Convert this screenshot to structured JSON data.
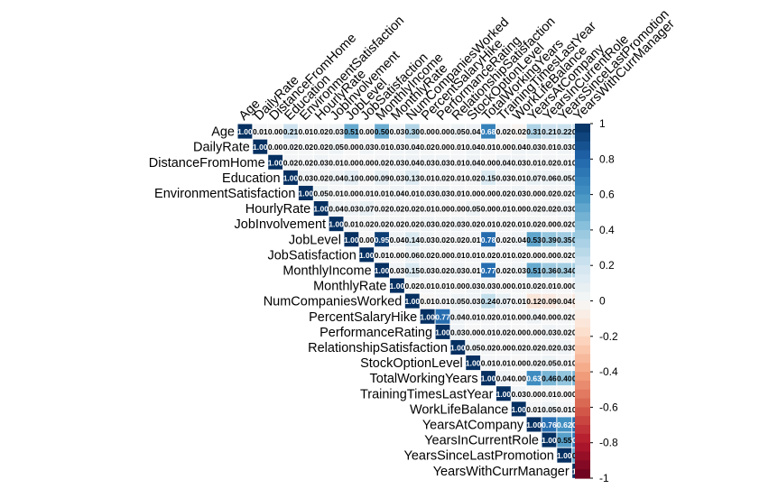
{
  "chart_data": {
    "type": "heatmap",
    "variables": [
      "Age",
      "DailyRate",
      "DistanceFromHome",
      "Education",
      "EnvironmentSatisfaction",
      "HourlyRate",
      "JobInvolvement",
      "JobLevel",
      "JobSatisfaction",
      "MonthlyIncome",
      "MonthlyRate",
      "NumCompaniesWorked",
      "PercentSalaryHike",
      "PerformanceRating",
      "RelationshipSatisfaction",
      "StockOptionLevel",
      "TotalWorkingYears",
      "TrainingTimesLastYear",
      "WorkLifeBalance",
      "YearsAtCompany",
      "YearsInCurrentRole",
      "YearsSinceLastPromotion",
      "YearsWithCurrManager"
    ],
    "upper_triangle_values": [
      [
        "1.00",
        "0.01",
        "0.00",
        "0.21",
        "0.01",
        "0.02",
        "0.03",
        "0.51",
        "0.00",
        "0.50",
        "0.03",
        "0.30",
        "0.00",
        "0.00",
        "0.05",
        "0.04",
        "0.68",
        "0.02",
        "0.02",
        "0.31",
        "0.21",
        "0.22",
        "0.20"
      ],
      [
        "1.00",
        "0.00",
        "0.02",
        "0.02",
        "0.02",
        "0.05",
        "0.00",
        "0.03",
        "0.01",
        "0.03",
        "0.04",
        "0.02",
        "0.00",
        "0.01",
        "0.04",
        "0.01",
        "0.00",
        "0.04",
        "0.03",
        "0.01",
        "0.03",
        "0.03"
      ],
      [
        "1.00",
        "0.02",
        "0.02",
        "0.03",
        "0.01",
        "0.00",
        "0.00",
        "0.02",
        "0.03",
        "0.04",
        "0.03",
        "0.03",
        "0.01",
        "0.04",
        "0.00",
        "0.04",
        "0.03",
        "0.01",
        "0.02",
        "0.01",
        "0.01"
      ],
      [
        "1.00",
        "0.03",
        "0.02",
        "0.04",
        "0.10",
        "0.00",
        "0.09",
        "0.03",
        "0.13",
        "0.01",
        "0.02",
        "0.01",
        "0.02",
        "0.15",
        "0.03",
        "0.01",
        "0.07",
        "0.06",
        "0.05",
        "0.07"
      ],
      [
        "1.00",
        "0.05",
        "0.01",
        "0.00",
        "0.01",
        "0.01",
        "0.04",
        "0.01",
        "0.03",
        "0.03",
        "0.01",
        "0.00",
        "0.00",
        "0.02",
        "0.03",
        "0.00",
        "0.02",
        "0.02",
        "0.00"
      ],
      [
        "1.00",
        "0.04",
        "0.03",
        "0.07",
        "0.02",
        "0.02",
        "0.02",
        "0.01",
        "0.00",
        "0.00",
        "0.05",
        "0.00",
        "0.01",
        "0.00",
        "0.02",
        "0.02",
        "0.03",
        "0.02"
      ],
      [
        "1.00",
        "0.01",
        "0.02",
        "0.02",
        "0.02",
        "0.02",
        "0.03",
        "0.02",
        "0.03",
        "0.02",
        "0.01",
        "0.02",
        "0.01",
        "0.02",
        "0.00",
        "0.02",
        "0.03"
      ],
      [
        "1.00",
        "0.00",
        "0.95",
        "0.04",
        "0.14",
        "0.03",
        "0.02",
        "0.02",
        "0.01",
        "0.78",
        "0.02",
        "0.04",
        "0.53",
        "0.39",
        "0.35",
        "0.38"
      ],
      [
        "1.00",
        "0.01",
        "0.00",
        "0.06",
        "0.02",
        "0.00",
        "0.01",
        "0.01",
        "0.02",
        "0.01",
        "0.02",
        "0.00",
        "0.00",
        "0.02",
        "0.03"
      ],
      [
        "1.00",
        "0.03",
        "0.15",
        "0.03",
        "0.02",
        "0.03",
        "0.01",
        "0.77",
        "0.02",
        "0.03",
        "0.51",
        "0.36",
        "0.34",
        "0.34"
      ],
      [
        "1.00",
        "0.02",
        "0.01",
        "0.01",
        "0.00",
        "0.03",
        "0.03",
        "0.00",
        "0.01",
        "0.02",
        "0.01",
        "0.00",
        "0.04"
      ],
      [
        "1.00",
        "0.01",
        "0.01",
        "0.05",
        "0.03",
        "0.24",
        "0.07",
        "0.01",
        "0.12",
        "0.09",
        "0.04",
        "0.11"
      ],
      [
        "1.00",
        "0.77",
        "0.04",
        "0.01",
        "0.02",
        "0.01",
        "0.00",
        "0.04",
        "0.00",
        "0.02",
        "0.01"
      ],
      [
        "1.00",
        "0.03",
        "0.00",
        "0.01",
        "0.02",
        "0.00",
        "0.00",
        "0.03",
        "0.02",
        "0.02"
      ],
      [
        "1.00",
        "0.05",
        "0.02",
        "0.00",
        "0.02",
        "0.02",
        "0.02",
        "0.03",
        "0.00"
      ],
      [
        "1.00",
        "0.01",
        "0.01",
        "0.00",
        "0.02",
        "0.05",
        "0.01",
        "0.02"
      ],
      [
        "1.00",
        "0.04",
        "0.00",
        "0.63",
        "0.46",
        "0.40",
        "0.46"
      ],
      [
        "1.00",
        "0.03",
        "0.00",
        "0.01",
        "0.00",
        "0.00"
      ],
      [
        "1.00",
        "0.01",
        "0.05",
        "0.01",
        "0.00"
      ],
      [
        "1.00",
        "0.76",
        "0.62",
        "0.77"
      ],
      [
        "1.00",
        "0.55",
        "0.71"
      ],
      [
        "1.00",
        "0.51"
      ],
      [
        "1.00"
      ]
    ],
    "negative_cells": [
      [
        0,
        18
      ],
      [
        11,
        19
      ],
      [
        11,
        20
      ],
      [
        11,
        21
      ],
      [
        11,
        22
      ],
      [
        11,
        12
      ]
    ],
    "colorbar": {
      "ticks": [
        "1",
        "0.8",
        "0.6",
        "0.4",
        "0.2",
        "0",
        "-0.2",
        "-0.4",
        "-0.6",
        "-0.8",
        "-1"
      ],
      "range": [
        -1,
        1
      ]
    },
    "colors": {
      "strong_positive": "#053061",
      "positive": "#4393c3",
      "neutral": "#f7f7f7",
      "negative": "#d6604d",
      "strong_negative": "#67001f"
    }
  }
}
